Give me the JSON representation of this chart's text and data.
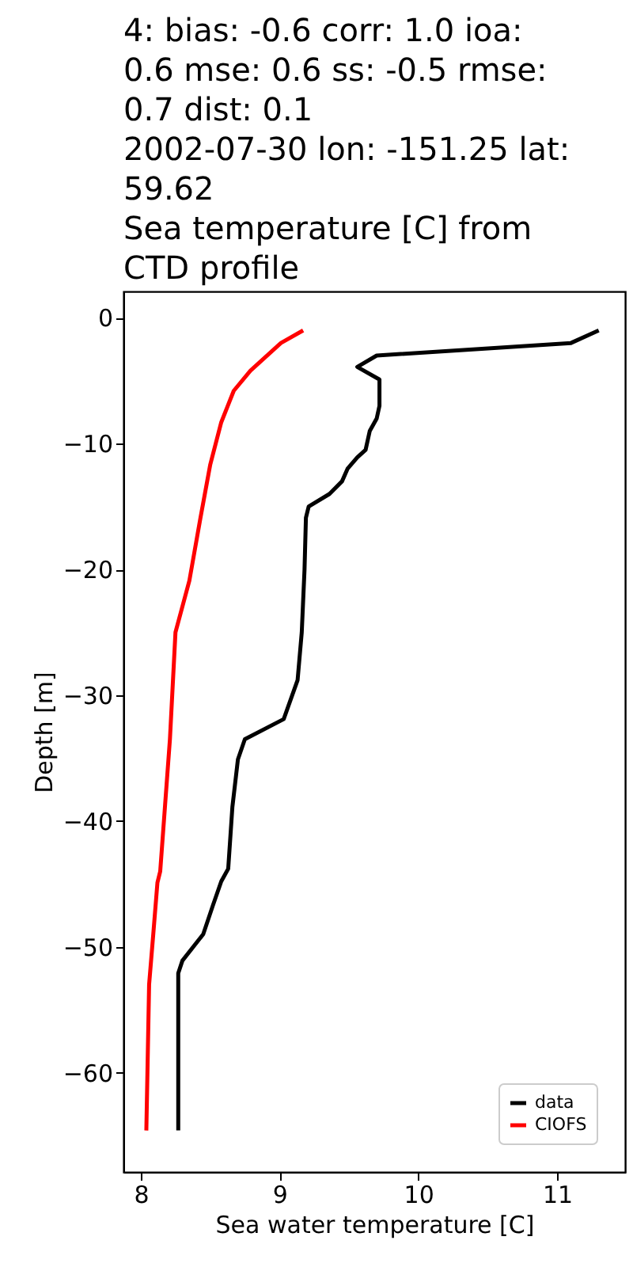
{
  "chart_data": {
    "type": "line",
    "title": [
      "4: bias: -0.6  corr: 1.0  ioa:",
      "0.6  mse: 0.6  ss: -0.5  rmse:",
      "0.7  dist: 0.1",
      "2002-07-30 lon: -151.25 lat:",
      "59.62",
      "Sea temperature [C] from",
      "CTD profile"
    ],
    "xlabel": "Sea water temperature [C]",
    "ylabel": "Depth [m]",
    "xlim": [
      7.875,
      11.49
    ],
    "ylim": [
      -67.9,
      2.1
    ],
    "xticks": [
      8,
      9,
      10,
      11
    ],
    "yticks": [
      0,
      -10,
      -20,
      -30,
      -40,
      -50,
      -60
    ],
    "grid": false,
    "legend": "bottom right",
    "line_style": "solid",
    "marker": "none",
    "series": [
      {
        "name": "data",
        "color": "#000000",
        "x": [
          11.3,
          11.1,
          9.7,
          9.56,
          9.72,
          9.72,
          9.7,
          9.65,
          9.62,
          9.56,
          9.49,
          9.45,
          9.36,
          9.21,
          9.19,
          9.18,
          9.16,
          9.13,
          9.03,
          8.75,
          8.7,
          8.66,
          8.63,
          8.58,
          8.52,
          8.45,
          8.3,
          8.27,
          8.27
        ],
        "values": [
          -1,
          -2,
          -3,
          -3.9,
          -4.9,
          -7,
          -8,
          -9,
          -10.5,
          -11.1,
          -12,
          -13,
          -14,
          -15,
          -15.9,
          -20,
          -25,
          -28.8,
          -31.9,
          -33.5,
          -35.1,
          -38.9,
          -43.8,
          -44.8,
          -46.7,
          -49,
          -51.1,
          -52.1,
          -64.6
        ]
      },
      {
        "name": "CIOFS",
        "color": "#ff0000",
        "x": [
          9.17,
          9.01,
          8.79,
          8.67,
          8.58,
          8.5,
          8.43,
          8.35,
          8.25,
          8.21,
          8.14,
          8.12,
          8.09,
          8.06,
          8.04
        ],
        "values": [
          -1,
          -2,
          -4.2,
          -5.8,
          -8.3,
          -11.7,
          -15.9,
          -20.9,
          -25,
          -33.5,
          -44,
          -44.9,
          -49,
          -53,
          -64.6
        ]
      }
    ]
  }
}
